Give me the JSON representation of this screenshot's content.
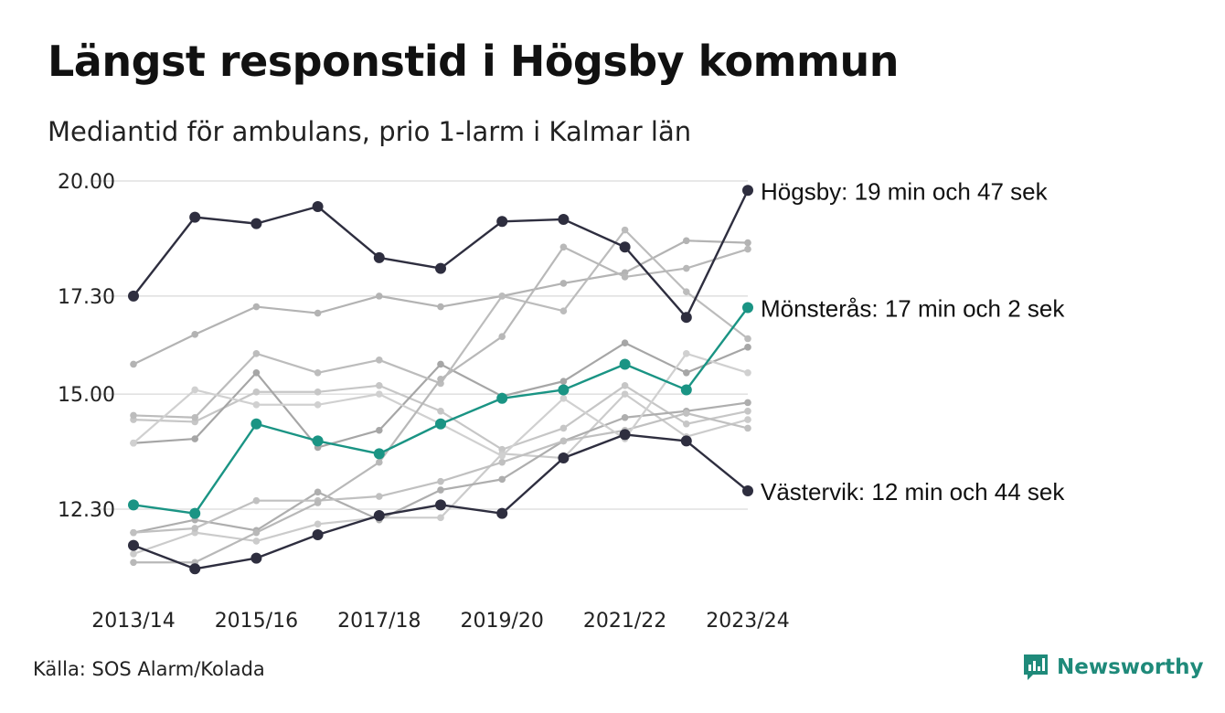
{
  "header": {
    "title": "Längst responstid i Högsby kommun",
    "subtitle": "Mediantid för ambulans, prio 1-larm i Kalmar län"
  },
  "footer": {
    "source": "Källa: SOS Alarm/Kolada",
    "brand": "Newsworthy"
  },
  "colors": {
    "highlight_dark": "#2e2e3f",
    "highlight_teal": "#1a9484",
    "other_series": [
      "#b3b3b3",
      "#c6c6c6",
      "#a6a6a6",
      "#bcbcbc",
      "#cbcbcb",
      "#aeaeae",
      "#c0c0c0",
      "#d0d0d0",
      "#b8b8b8"
    ],
    "gridline": "#d9d9d9",
    "brand": "#1f8a7a"
  },
  "chart_data": {
    "type": "line",
    "title": "Längst responstid i Högsby kommun",
    "subtitle": "Mediantid för ambulans, prio 1-larm i Kalmar län",
    "x": [
      "2013/14",
      "2014/15",
      "2015/16",
      "2016/17",
      "2017/18",
      "2018/19",
      "2019/20",
      "2020/21",
      "2021/22",
      "2022/23",
      "2023/24"
    ],
    "x_tick_labels": [
      "2013/14",
      "2015/16",
      "2017/18",
      "2019/20",
      "2021/22",
      "2023/24"
    ],
    "y_ticks": [
      12.3,
      15.0,
      17.3,
      20.0
    ],
    "y_tick_labels": [
      "12.30",
      "15.00",
      "17.30",
      "20.00"
    ],
    "ylim": [
      10.5,
      20.0
    ],
    "grid": true,
    "series": [
      {
        "values": [
          15.7,
          16.4,
          17.05,
          16.9,
          17.3,
          17.05,
          17.3,
          17.6,
          17.85,
          18.6,
          18.55
        ],
        "highlight": false
      },
      {
        "values": [
          14.4,
          14.35,
          15.05,
          15.05,
          15.2,
          14.6,
          13.7,
          14.2,
          15.2,
          14.3,
          14.6
        ],
        "highlight": false
      },
      {
        "values": [
          13.85,
          13.95,
          15.5,
          13.75,
          14.15,
          15.7,
          14.95,
          15.3,
          16.2,
          15.5,
          16.1
        ],
        "highlight": false
      },
      {
        "values": [
          14.5,
          14.45,
          15.95,
          15.5,
          15.8,
          15.25,
          17.3,
          16.95,
          18.85,
          17.4,
          16.3
        ],
        "highlight": false
      },
      {
        "values": [
          11.25,
          11.75,
          11.55,
          11.95,
          12.1,
          12.1,
          13.6,
          13.5,
          15.0,
          14.0,
          14.4
        ],
        "highlight": false
      },
      {
        "values": [
          11.75,
          12.05,
          11.8,
          12.7,
          12.05,
          12.75,
          13.0,
          13.9,
          14.45,
          14.6,
          14.8
        ],
        "highlight": false
      },
      {
        "values": [
          11.75,
          11.85,
          12.5,
          12.5,
          12.6,
          12.95,
          13.4,
          13.9,
          14.15,
          14.55,
          14.2
        ],
        "highlight": false
      },
      {
        "values": [
          13.85,
          15.1,
          14.75,
          14.75,
          15.0,
          14.3,
          13.55,
          14.9,
          13.95,
          15.95,
          15.5
        ],
        "highlight": false
      },
      {
        "values": [
          11.05,
          11.05,
          11.75,
          12.45,
          13.4,
          15.35,
          16.35,
          18.45,
          17.75,
          17.95,
          18.4
        ],
        "highlight": false
      },
      {
        "name": "Högsby",
        "label": "Högsby: 19 min och 47 sek",
        "values": [
          17.3,
          19.15,
          19.0,
          19.4,
          18.2,
          17.95,
          19.05,
          19.1,
          18.45,
          16.8,
          19.78
        ],
        "highlight": true,
        "color": "#2e2e3f"
      },
      {
        "name": "Mönsterås",
        "label": "Mönsterås: 17 min och 2 sek",
        "values": [
          12.4,
          12.2,
          14.3,
          13.9,
          13.6,
          14.3,
          14.9,
          15.1,
          15.7,
          15.1,
          17.03
        ],
        "highlight": true,
        "color": "#1a9484"
      },
      {
        "name": "Västervik",
        "label": "Västervik: 12 min och 44 sek",
        "values": [
          11.45,
          10.9,
          11.15,
          11.7,
          12.15,
          12.4,
          12.2,
          13.5,
          14.05,
          13.9,
          12.73
        ],
        "highlight": true,
        "color": "#2e2e3f"
      }
    ]
  }
}
